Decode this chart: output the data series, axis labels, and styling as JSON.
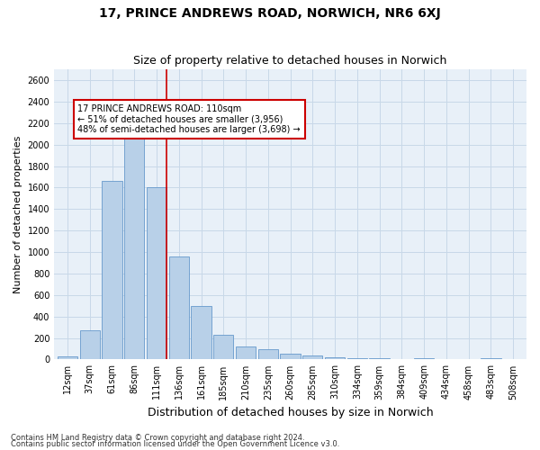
{
  "title1": "17, PRINCE ANDREWS ROAD, NORWICH, NR6 6XJ",
  "title2": "Size of property relative to detached houses in Norwich",
  "xlabel": "Distribution of detached houses by size in Norwich",
  "ylabel": "Number of detached properties",
  "footer1": "Contains HM Land Registry data © Crown copyright and database right 2024.",
  "footer2": "Contains public sector information licensed under the Open Government Licence v3.0.",
  "bar_labels": [
    "12sqm",
    "37sqm",
    "61sqm",
    "86sqm",
    "111sqm",
    "136sqm",
    "161sqm",
    "185sqm",
    "210sqm",
    "235sqm",
    "260sqm",
    "285sqm",
    "310sqm",
    "334sqm",
    "359sqm",
    "384sqm",
    "409sqm",
    "434sqm",
    "458sqm",
    "483sqm",
    "508sqm"
  ],
  "bar_values": [
    25,
    270,
    1660,
    2150,
    1600,
    960,
    500,
    230,
    120,
    95,
    55,
    35,
    20,
    12,
    8,
    5,
    15,
    4,
    5,
    10,
    4
  ],
  "bar_color": "#b8d0e8",
  "bar_edge_color": "#6699cc",
  "highlight_index": 4,
  "highlight_line_color": "#cc0000",
  "annotation_text": "17 PRINCE ANDREWS ROAD: 110sqm\n← 51% of detached houses are smaller (3,956)\n48% of semi-detached houses are larger (3,698) →",
  "annotation_box_color": "#ffffff",
  "annotation_box_edge_color": "#cc0000",
  "ylim": [
    0,
    2700
  ],
  "yticks": [
    0,
    200,
    400,
    600,
    800,
    1000,
    1200,
    1400,
    1600,
    1800,
    2000,
    2200,
    2400,
    2600
  ],
  "grid_color": "#c8d8e8",
  "bg_color": "#e8f0f8",
  "fig_bg_color": "#ffffff",
  "title1_fontsize": 10,
  "title2_fontsize": 9,
  "xlabel_fontsize": 9,
  "ylabel_fontsize": 8,
  "annotation_fontsize": 7,
  "tick_fontsize": 7
}
